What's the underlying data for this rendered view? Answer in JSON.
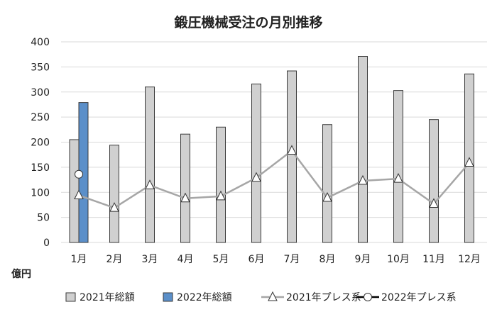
{
  "chart_data": {
    "type": "bar",
    "title": "鍛圧機械受注の月別推移",
    "ylabel": "億円",
    "xlabel": "",
    "ylim": [
      0,
      400
    ],
    "yticks": [
      0,
      50,
      100,
      150,
      200,
      250,
      300,
      350,
      400
    ],
    "grid": true,
    "legend_position": "bottom",
    "categories": [
      "1月",
      "2月",
      "3月",
      "4月",
      "5月",
      "6月",
      "7月",
      "8月",
      "9月",
      "10月",
      "11月",
      "12月"
    ],
    "series": [
      {
        "name": "2021年総額",
        "kind": "bar",
        "color": "#d0d0d0",
        "values": [
          205,
          194,
          310,
          216,
          230,
          316,
          342,
          235,
          371,
          303,
          245,
          336
        ]
      },
      {
        "name": "2022年総額",
        "kind": "bar",
        "color": "#5b8fc9",
        "values": [
          279,
          null,
          null,
          null,
          null,
          null,
          null,
          null,
          null,
          null,
          null,
          null
        ]
      },
      {
        "name": "2021年プレス系",
        "kind": "line",
        "marker": "triangle",
        "color": "#a6a6a6",
        "values": [
          94,
          69,
          114,
          88,
          92,
          129,
          183,
          89,
          123,
          127,
          77,
          159
        ]
      },
      {
        "name": "2022年プレス系",
        "kind": "line",
        "marker": "circle",
        "color": "#000000",
        "values": [
          136,
          null,
          null,
          null,
          null,
          null,
          null,
          null,
          null,
          null,
          null,
          null
        ]
      }
    ]
  }
}
